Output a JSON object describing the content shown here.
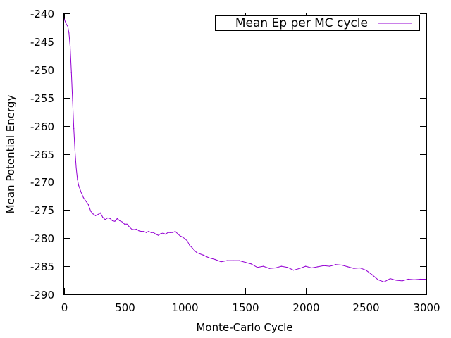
{
  "chart_data": {
    "type": "line",
    "title": "",
    "xlabel": "Monte-Carlo Cycle",
    "ylabel": "Mean Potential Energy",
    "xlim": [
      0,
      3000
    ],
    "ylim": [
      -290,
      -240
    ],
    "xticks": [
      0,
      500,
      1000,
      1500,
      2000,
      2500,
      3000
    ],
    "xtick_labels": [
      "0",
      "500",
      "1000",
      "1500",
      "2000",
      "2500",
      "3000"
    ],
    "yticks": [
      -290,
      -285,
      -280,
      -275,
      -270,
      -265,
      -260,
      -255,
      -250,
      -245,
      -240
    ],
    "ytick_labels": [
      "-290",
      "-285",
      "-280",
      "-275",
      "-270",
      "-265",
      "-260",
      "-255",
      "-250",
      "-245",
      "-240"
    ],
    "grid": false,
    "legend_position": "top-right",
    "series": [
      {
        "name": "Mean Ep per MC cycle",
        "color": "#9400d3",
        "x": [
          0,
          10,
          20,
          30,
          40,
          50,
          60,
          70,
          80,
          90,
          100,
          110,
          120,
          140,
          160,
          180,
          200,
          220,
          240,
          260,
          280,
          300,
          320,
          340,
          360,
          380,
          400,
          420,
          440,
          460,
          480,
          500,
          520,
          540,
          560,
          580,
          600,
          620,
          640,
          660,
          680,
          700,
          720,
          740,
          760,
          780,
          800,
          820,
          840,
          860,
          880,
          900,
          920,
          940,
          960,
          980,
          1000,
          1020,
          1040,
          1060,
          1080,
          1100,
          1150,
          1200,
          1250,
          1300,
          1350,
          1400,
          1450,
          1500,
          1550,
          1600,
          1650,
          1700,
          1750,
          1800,
          1850,
          1900,
          1950,
          2000,
          2050,
          2100,
          2150,
          2200,
          2250,
          2300,
          2350,
          2400,
          2450,
          2500,
          2550,
          2600,
          2650,
          2700,
          2750,
          2800,
          2850,
          2900,
          2950,
          3000
        ],
        "y": [
          -241.0,
          -241.5,
          -242.0,
          -242.3,
          -243.5,
          -246.0,
          -250.5,
          -255.5,
          -260.5,
          -264.5,
          -267.5,
          -269.5,
          -270.6,
          -271.8,
          -272.8,
          -273.4,
          -274.0,
          -275.2,
          -275.7,
          -276.0,
          -275.8,
          -275.5,
          -276.3,
          -276.7,
          -276.4,
          -276.5,
          -276.9,
          -277.0,
          -276.5,
          -276.9,
          -277.1,
          -277.5,
          -277.5,
          -278.0,
          -278.4,
          -278.5,
          -278.4,
          -278.7,
          -278.8,
          -278.8,
          -279.0,
          -278.8,
          -279.0,
          -279.0,
          -279.3,
          -279.5,
          -279.2,
          -279.1,
          -279.3,
          -279.0,
          -279.0,
          -279.0,
          -278.8,
          -279.2,
          -279.6,
          -279.8,
          -280.1,
          -280.5,
          -281.3,
          -281.7,
          -282.2,
          -282.6,
          -283.0,
          -283.5,
          -283.8,
          -284.2,
          -284.0,
          -284.0,
          -284.0,
          -284.3,
          -284.6,
          -285.2,
          -285.0,
          -285.4,
          -285.3,
          -285.0,
          -285.2,
          -285.7,
          -285.4,
          -285.0,
          -285.3,
          -285.1,
          -284.9,
          -285.0,
          -284.7,
          -284.8,
          -285.1,
          -285.4,
          -285.3,
          -285.7,
          -286.5,
          -287.4,
          -287.8,
          -287.2,
          -287.5,
          -287.6,
          -287.3,
          -287.4,
          -287.3,
          -287.3
        ]
      }
    ]
  }
}
